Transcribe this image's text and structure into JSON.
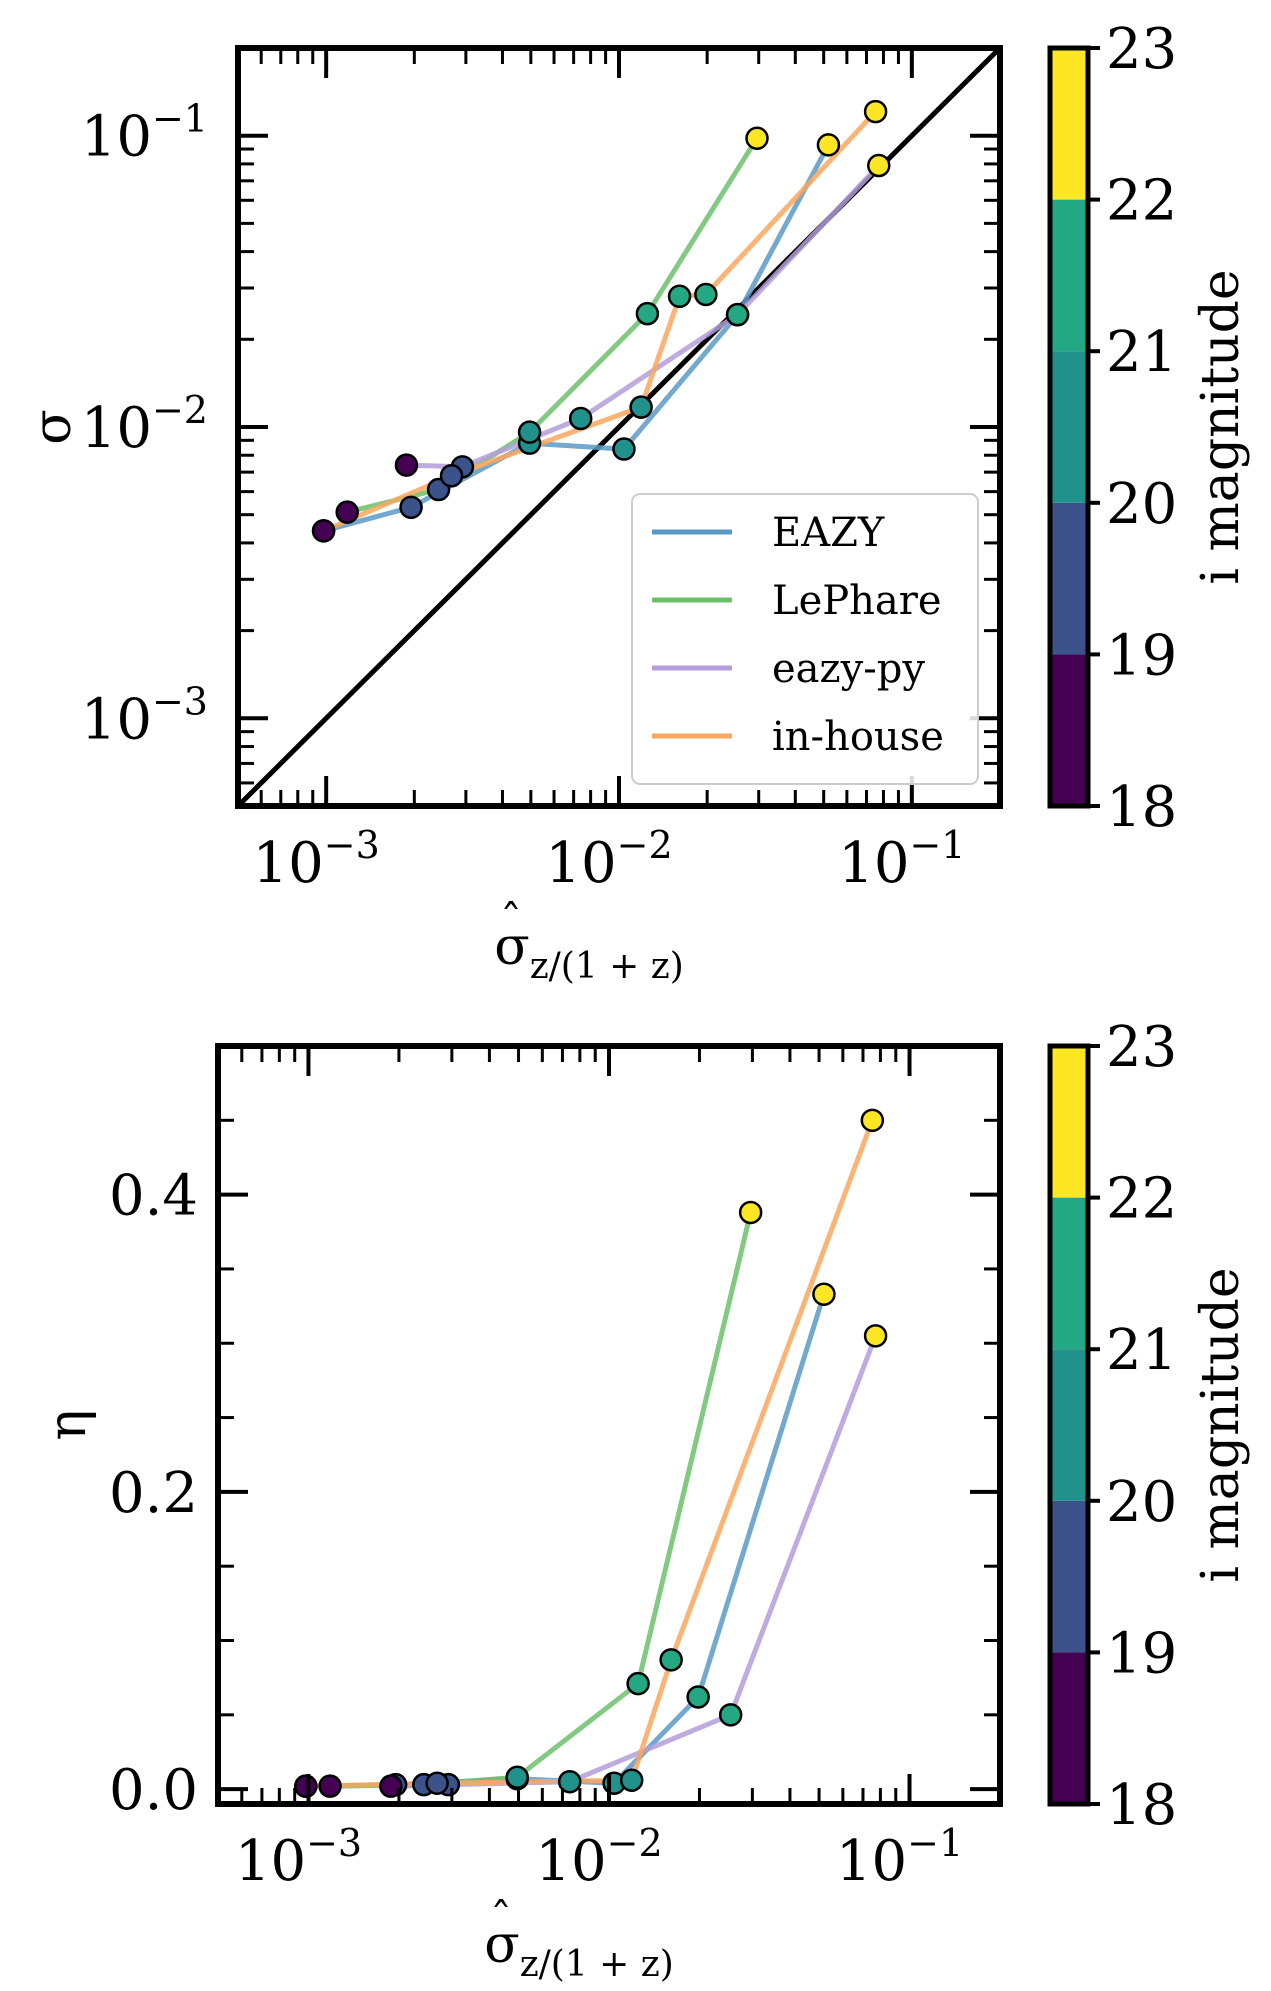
{
  "chart_data": [
    {
      "type": "line",
      "id": "top",
      "xscale": "log",
      "yscale": "log",
      "xlim": [
        0.0005,
        0.2
      ],
      "ylim": [
        0.0005,
        0.2
      ],
      "ylabel": "σ",
      "xlabel": {
        "main": "σ",
        "accent": "ˆ",
        "sub": "z/(1 + z)"
      },
      "xticks": [
        {
          "base": "10",
          "exp": "−3",
          "value": 0.001
        },
        {
          "base": "10",
          "exp": "−2",
          "value": 0.01
        },
        {
          "base": "10",
          "exp": "−1",
          "value": 0.1
        }
      ],
      "yticks": [
        {
          "base": "10",
          "exp": "−3",
          "value": 0.001
        },
        {
          "base": "10",
          "exp": "−2",
          "value": 0.01
        },
        {
          "base": "10",
          "exp": "−1",
          "value": 0.1
        }
      ],
      "reference_line": "y = x",
      "legend_position": "lower-right",
      "series": [
        {
          "name": "EAZY",
          "color": "#5b9ac6",
          "points": [
            [
              0.00098,
              0.0044,
              18.5
            ],
            [
              0.00195,
              0.0053,
              19.5
            ],
            [
              0.00495,
              0.0088,
              20.5
            ],
            [
              0.0104,
              0.0084,
              20.5
            ],
            [
              0.0254,
              0.0243,
              21.5
            ],
            [
              0.0519,
              0.093,
              22.5
            ]
          ]
        },
        {
          "name": "LePhare",
          "color": "#6cc06c",
          "points": [
            [
              0.00118,
              0.0051,
              18.5
            ],
            [
              0.00242,
              0.0061,
              19.5
            ],
            [
              0.00495,
              0.0096,
              20.5
            ],
            [
              0.0125,
              0.0245,
              21.5
            ],
            [
              0.0296,
              0.098,
              22.5
            ]
          ]
        },
        {
          "name": "eazy-py",
          "color": "#b39ddb",
          "points": [
            [
              0.00188,
              0.0074,
              18.5
            ],
            [
              0.00292,
              0.0073,
              19.5
            ],
            [
              0.0074,
              0.0107,
              20.5
            ],
            [
              0.0254,
              0.0243,
              21.5
            ],
            [
              0.0771,
              0.079,
              22.5
            ]
          ]
        },
        {
          "name": "in-house",
          "color": "#fca75e",
          "points": [
            [
              0.00098,
              0.0044,
              18.5
            ],
            [
              0.00268,
              0.0068,
              19.5
            ],
            [
              0.0119,
              0.0117,
              20.5
            ],
            [
              0.0161,
              0.0281,
              21.5
            ],
            [
              0.0198,
              0.0285,
              21.5
            ],
            [
              0.0752,
              0.121,
              22.5
            ]
          ]
        }
      ]
    },
    {
      "type": "line",
      "id": "bottom",
      "xscale": "log",
      "yscale": "linear",
      "xlim": [
        0.0005,
        0.2
      ],
      "ylim": [
        -0.01,
        0.5
      ],
      "ylabel": "η",
      "xlabel": {
        "main": "σ",
        "accent": "ˆ",
        "sub": "z/(1 + z)"
      },
      "xticks": [
        {
          "base": "10",
          "exp": "−3",
          "value": 0.001
        },
        {
          "base": "10",
          "exp": "−2",
          "value": 0.01
        },
        {
          "base": "10",
          "exp": "−1",
          "value": 0.1
        }
      ],
      "yticks": [
        {
          "label": "0.0",
          "value": 0.0
        },
        {
          "label": "0.2",
          "value": 0.2
        },
        {
          "label": "0.4",
          "value": 0.4
        }
      ],
      "series": [
        {
          "name": "EAZY",
          "color": "#5b9ac6",
          "points": [
            [
              0.00098,
              0.002,
              18.5
            ],
            [
              0.00195,
              0.003,
              19.5
            ],
            [
              0.00495,
              0.007,
              20.5
            ],
            [
              0.0104,
              0.004,
              20.5
            ],
            [
              0.0198,
              0.062,
              21.5
            ],
            [
              0.0519,
              0.333,
              22.5
            ]
          ]
        },
        {
          "name": "LePhare",
          "color": "#6cc06c",
          "points": [
            [
              0.00118,
              0.002,
              18.5
            ],
            [
              0.00242,
              0.003,
              19.5
            ],
            [
              0.00495,
              0.008,
              20.5
            ],
            [
              0.0125,
              0.071,
              21.5
            ],
            [
              0.0296,
              0.388,
              22.5
            ]
          ]
        },
        {
          "name": "eazy-py",
          "color": "#b39ddb",
          "points": [
            [
              0.00188,
              0.002,
              18.5
            ],
            [
              0.00292,
              0.003,
              19.5
            ],
            [
              0.0074,
              0.005,
              20.5
            ],
            [
              0.0254,
              0.05,
              21.5
            ],
            [
              0.0771,
              0.305,
              22.5
            ]
          ]
        },
        {
          "name": "in-house",
          "color": "#fca75e",
          "points": [
            [
              0.00098,
              0.002,
              18.5
            ],
            [
              0.00268,
              0.004,
              19.5
            ],
            [
              0.0119,
              0.006,
              20.5
            ],
            [
              0.0161,
              0.087,
              21.5
            ],
            [
              0.0752,
              0.45,
              22.5
            ]
          ]
        }
      ]
    }
  ],
  "colorbar": {
    "label": "i magnitude",
    "ticks": [
      "18",
      "19",
      "20",
      "21",
      "22",
      "23"
    ],
    "min": 18,
    "max": 23,
    "bins": [
      {
        "from": 18,
        "to": 19,
        "color": "#440154"
      },
      {
        "from": 19,
        "to": 20,
        "color": "#3b528b"
      },
      {
        "from": 20,
        "to": 21,
        "color": "#21918c"
      },
      {
        "from": 21,
        "to": 22,
        "color": "#23a883"
      },
      {
        "from": 22,
        "to": 23,
        "color": "#fde725"
      }
    ]
  }
}
